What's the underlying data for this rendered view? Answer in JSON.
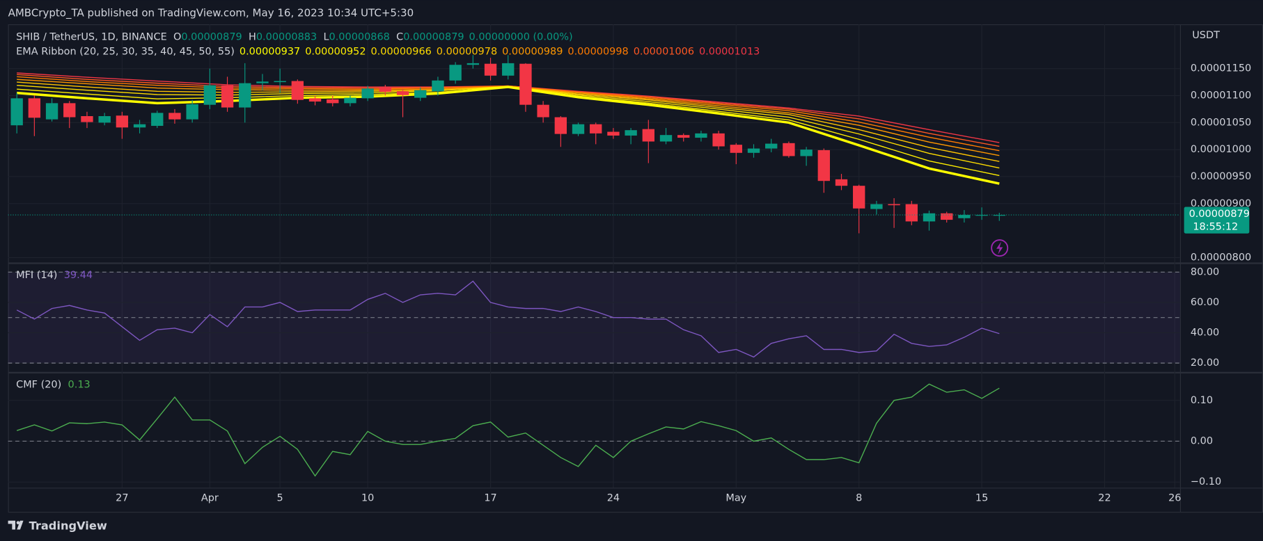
{
  "header": "AMBCrypto_TA published on TradingView.com, May 16, 2023 10:34 UTC+5:30",
  "footer": "TradingView",
  "chart_data": [
    {
      "type": "candlestick",
      "title": "SHIB / TetherUS, 1D, BINANCE",
      "unit": "USDT",
      "ohlc_labels": [
        "O",
        "H",
        "L",
        "C"
      ],
      "change": "0.00000000 (0.00%)",
      "countdown": "18:55:12",
      "up_color": "#089981",
      "down_color": "#f23645",
      "open": [
        1.045e-05,
        1.095e-05,
        1.056e-05,
        1.086e-05,
        1.062e-05,
        1.05e-05,
        1.063e-05,
        1.041e-05,
        1.044e-05,
        1.068e-05,
        1.056e-05,
        1.083e-05,
        1.119e-05,
        1.078e-05,
        1.123e-05,
        1.125e-05,
        1.127e-05,
        1.095e-05,
        1.093e-05,
        1.086e-05,
        1.095e-05,
        1.116e-05,
        1.108e-05,
        1.096e-05,
        1.108e-05,
        1.128e-05,
        1.157e-05,
        1.159e-05,
        1.137e-05,
        1.159e-05,
        1.083e-05,
        1.06e-05,
        1.029e-05,
        1.047e-05,
        1.033e-05,
        1.026e-05,
        1.038e-05,
        1.015e-05,
        1.027e-05,
        1.022e-05,
        1.03e-05,
        1.009e-05,
        9.94e-06,
        1.002e-05,
        1.012e-05,
        9.88e-06,
        9.99e-06,
        9.45e-06,
        9.33e-06,
        8.9e-06,
        8.99e-06,
        8.99e-06,
        8.67e-06,
        8.82e-06,
        8.73e-06,
        8.78e-06,
        8.79e-06
      ],
      "high": [
        1.105e-05,
        1.1e-05,
        1.095e-05,
        1.09e-05,
        1.07e-05,
        1.068e-05,
        1.07e-05,
        1.055e-05,
        1.072e-05,
        1.075e-05,
        1.092e-05,
        1.15e-05,
        1.135e-05,
        1.16e-05,
        1.14e-05,
        1.15e-05,
        1.13e-05,
        1.1e-05,
        1.1e-05,
        1.1e-05,
        1.118e-05,
        1.12e-05,
        1.112e-05,
        1.115e-05,
        1.135e-05,
        1.162e-05,
        1.175e-05,
        1.17e-05,
        1.175e-05,
        1.16e-05,
        1.09e-05,
        1.062e-05,
        1.05e-05,
        1.05e-05,
        1.04e-05,
        1.04e-05,
        1.055e-05,
        1.04e-05,
        1.03e-05,
        1.035e-05,
        1.035e-05,
        1.012e-05,
        1.01e-05,
        1.02e-05,
        1.015e-05,
        1.005e-05,
        1.002e-05,
        9.55e-06,
        9.35e-06,
        9.05e-06,
        9.1e-06,
        9.05e-06,
        8.87e-06,
        8.85e-06,
        8.88e-06,
        8.93e-06,
        8.83e-06
      ],
      "low": [
        1.03e-05,
        1.025e-05,
        1.052e-05,
        1.04e-05,
        1.04e-05,
        1.045e-05,
        1.02e-05,
        1.03e-05,
        1.04e-05,
        1.048e-05,
        1.05e-05,
        1.075e-05,
        1.07e-05,
        1.05e-05,
        1.11e-05,
        1.105e-05,
        1.085e-05,
        1.082e-05,
        1.08e-05,
        1.08e-05,
        1.09e-05,
        1.1e-05,
        1.06e-05,
        1.09e-05,
        1.1e-05,
        1.122e-05,
        1.15e-05,
        1.128e-05,
        1.13e-05,
        1.07e-05,
        1.05e-05,
        1.005e-05,
        1.025e-05,
        1.01e-05,
        1.02e-05,
        1.01e-05,
        9.75e-06,
        1.01e-05,
        1.015e-05,
        1.015e-05,
        1e-05,
        9.73e-06,
        9.85e-06,
        9.95e-06,
        9.85e-06,
        9.7e-06,
        9.2e-06,
        9.25e-06,
        8.45e-06,
        8.8e-06,
        8.55e-06,
        8.6e-06,
        8.5e-06,
        8.65e-06,
        8.65e-06,
        8.7e-06,
        8.68e-06
      ],
      "close": [
        1.095e-05,
        1.059e-05,
        1.086e-05,
        1.06e-05,
        1.051e-05,
        1.062e-05,
        1.041e-05,
        1.047e-05,
        1.068e-05,
        1.056e-05,
        1.084e-05,
        1.119e-05,
        1.078e-05,
        1.123e-05,
        1.126e-05,
        1.127e-05,
        1.092e-05,
        1.089e-05,
        1.086e-05,
        1.096e-05,
        1.113e-05,
        1.107e-05,
        1.101e-05,
        1.11e-05,
        1.128e-05,
        1.157e-05,
        1.16e-05,
        1.137e-05,
        1.16e-05,
        1.083e-05,
        1.06e-05,
        1.029e-05,
        1.047e-05,
        1.03e-05,
        1.026e-05,
        1.036e-05,
        1.015e-05,
        1.027e-05,
        1.022e-05,
        1.03e-05,
        1.006e-05,
        9.94e-06,
        1.002e-05,
        1.011e-05,
        9.88e-06,
        1e-05,
        9.42e-06,
        9.33e-06,
        8.91e-06,
        8.99e-06,
        8.97e-06,
        8.67e-06,
        8.82e-06,
        8.7e-06,
        8.79e-06,
        8.79e-06,
        8.79e-06
      ],
      "xlim": [
        -0.5,
        66.3
      ],
      "xticks": [
        {
          "value": 6,
          "label": "27"
        },
        {
          "value": 11,
          "label": "Apr"
        },
        {
          "value": 15,
          "label": "5"
        },
        {
          "value": 20,
          "label": "10"
        },
        {
          "value": 27,
          "label": "17"
        },
        {
          "value": 34,
          "label": "24"
        },
        {
          "value": 41,
          "label": "May"
        },
        {
          "value": 48,
          "label": "8"
        },
        {
          "value": 55,
          "label": "15"
        },
        {
          "value": 62,
          "label": "22"
        },
        {
          "value": 66,
          "label": "26"
        }
      ],
      "ylim": [
        7.91e-06,
        1.232e-05
      ],
      "yticks": [
        {
          "value": 1.15e-05,
          "label": "0.00001150"
        },
        {
          "value": 1.1e-05,
          "label": "0.00001100"
        },
        {
          "value": 1.05e-05,
          "label": "0.00001050"
        },
        {
          "value": 1e-05,
          "label": "0.00001000"
        },
        {
          "value": 9.5e-06,
          "label": "0.00000950"
        },
        {
          "value": 9e-06,
          "label": "0.00000900"
        },
        {
          "value": 8e-06,
          "label": "0.00000800"
        }
      ],
      "grid": true,
      "ribbon": {
        "title": "EMA Ribbon (20, 25, 30, 35, 40, 45, 50, 55)",
        "x": [
          0,
          4,
          8,
          12,
          16,
          20,
          24,
          28,
          32,
          36,
          40,
          44,
          48,
          52,
          56
        ],
        "series": [
          {
            "color": "#ffff00",
            "values": [
              1.105e-05,
              1.095e-05,
              1.086e-05,
              1.09e-05,
              1.096e-05,
              1.098e-05,
              1.104e-05,
              1.116e-05,
              1.097e-05,
              1.083e-05,
              1.067e-05,
              1.05e-05,
              1.008e-05,
              9.65e-06,
              9.37e-06
            ]
          },
          {
            "color": "#ffee00",
            "values": [
              1.112e-05,
              1.103e-05,
              1.094e-05,
              1.096e-05,
              1.1e-05,
              1.102e-05,
              1.106e-05,
              1.116e-05,
              1.099e-05,
              1.086e-05,
              1.071e-05,
              1.055e-05,
              1.019e-05,
              9.79e-06,
              9.52e-06
            ]
          },
          {
            "color": "#ffdd00",
            "values": [
              1.119e-05,
              1.11e-05,
              1.102e-05,
              1.101e-05,
              1.104e-05,
              1.105e-05,
              1.109e-05,
              1.117e-05,
              1.101e-05,
              1.089e-05,
              1.075e-05,
              1.06e-05,
              1.029e-05,
              9.93e-06,
              9.66e-06
            ]
          },
          {
            "color": "#ffc400",
            "values": [
              1.125e-05,
              1.116e-05,
              1.108e-05,
              1.106e-05,
              1.107e-05,
              1.108e-05,
              1.11e-05,
              1.117e-05,
              1.103e-05,
              1.092e-05,
              1.078e-05,
              1.065e-05,
              1.037e-05,
              1.004e-05,
              9.78e-06
            ]
          },
          {
            "color": "#ff9800",
            "values": [
              1.13e-05,
              1.122e-05,
              1.114e-05,
              1.111e-05,
              1.11e-05,
              1.11e-05,
              1.112e-05,
              1.117e-05,
              1.105e-05,
              1.094e-05,
              1.081e-05,
              1.068e-05,
              1.045e-05,
              1.014e-05,
              9.89e-06
            ]
          },
          {
            "color": "#ff7a00",
            "values": [
              1.135e-05,
              1.126e-05,
              1.119e-05,
              1.114e-05,
              1.113e-05,
              1.112e-05,
              1.114e-05,
              1.118e-05,
              1.106e-05,
              1.096e-05,
              1.084e-05,
              1.072e-05,
              1.051e-05,
              1.023e-05,
              9.98e-06
            ]
          },
          {
            "color": "#ff5722",
            "values": [
              1.139e-05,
              1.13e-05,
              1.123e-05,
              1.117e-05,
              1.115e-05,
              1.114e-05,
              1.115e-05,
              1.118e-05,
              1.107e-05,
              1.098e-05,
              1.086e-05,
              1.075e-05,
              1.057e-05,
              1.03e-05,
              1.006e-05
            ]
          },
          {
            "color": "#f23645",
            "values": [
              1.142e-05,
              1.134e-05,
              1.127e-05,
              1.12e-05,
              1.117e-05,
              1.116e-05,
              1.116e-05,
              1.118e-05,
              1.108e-05,
              1.099e-05,
              1.088e-05,
              1.077e-05,
              1.062e-05,
              1.037e-05,
              1.013e-05
            ]
          }
        ]
      }
    },
    {
      "type": "line",
      "title": "MFI (14)",
      "color": "#7e57c2",
      "values": [
        55,
        49,
        56,
        58,
        55,
        53,
        44,
        35,
        42,
        43,
        40,
        52,
        44,
        57,
        57,
        60,
        54,
        55,
        55,
        55,
        62,
        66,
        60,
        65,
        66,
        65,
        74,
        60,
        57,
        56,
        56,
        54,
        57,
        54,
        50,
        50,
        49,
        49,
        42,
        38,
        27,
        29,
        24,
        33,
        36,
        38,
        29,
        29,
        27,
        28,
        39,
        33,
        31,
        32,
        37,
        43,
        39.44
      ],
      "ylim": [
        14.2,
        85.3
      ],
      "yticks": [
        {
          "value": 80,
          "label": "80.00"
        },
        {
          "value": 60,
          "label": "60.00"
        },
        {
          "value": 40,
          "label": "40.00"
        },
        {
          "value": 20,
          "label": "20.00"
        }
      ],
      "levels": [
        80,
        50,
        20
      ],
      "band": true
    },
    {
      "type": "line",
      "title": "CMF (20)",
      "color": "#4caf50",
      "values": [
        0.026,
        0.04,
        0.025,
        0.045,
        0.043,
        0.047,
        0.04,
        0.003,
        0.055,
        0.108,
        0.052,
        0.052,
        0.025,
        -0.055,
        -0.015,
        0.012,
        -0.02,
        -0.085,
        -0.025,
        -0.033,
        0.024,
        0.0,
        -0.008,
        -0.008,
        0.0,
        0.007,
        0.038,
        0.047,
        0.01,
        0.02,
        -0.01,
        -0.04,
        -0.062,
        -0.01,
        -0.04,
        0.0,
        0.018,
        0.035,
        0.03,
        0.048,
        0.038,
        0.026,
        0.0,
        0.008,
        -0.02,
        -0.045,
        -0.045,
        -0.04,
        -0.053,
        0.044,
        0.1,
        0.108,
        0.14,
        0.12,
        0.126,
        0.105,
        0.13
      ],
      "ylim": [
        -0.114,
        0.166
      ],
      "yticks": [
        {
          "value": 0.1,
          "label": "0.10"
        },
        {
          "value": 0,
          "label": "0.00"
        },
        {
          "value": -0.1,
          "label": "−0.10"
        }
      ],
      "levels": [
        0
      ],
      "band": false
    }
  ]
}
